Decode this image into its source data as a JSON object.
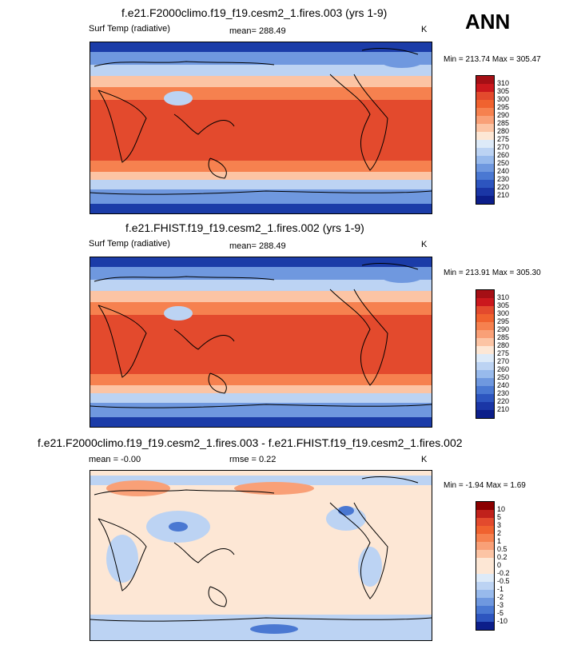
{
  "season": "ANN",
  "panels": [
    {
      "title": "f.e21.F2000climo.f19_f19.cesm2_1.fires.003 (yrs 1-9)",
      "variable": "Surf Temp (radiative)",
      "mean_text": "mean= 288.49",
      "units": "K",
      "minmax_text": "Min = 213.74 Max = 305.47",
      "colorbar_levels": [
        "310",
        "305",
        "300",
        "295",
        "290",
        "285",
        "280",
        "275",
        "270",
        "260",
        "250",
        "240",
        "230",
        "220",
        "210"
      ],
      "colorbar_colors": [
        "#a50f15",
        "#cb181d",
        "#e34a2d",
        "#f0622f",
        "#f6814f",
        "#f9a077",
        "#fcc4a4",
        "#fde7d5",
        "#ddeaf8",
        "#bcd3f3",
        "#98baec",
        "#6f98df",
        "#4a78d2",
        "#2d55bf",
        "#1a36a6",
        "#0c1e8a"
      ],
      "map_colors": {
        "polar": "#1b3ca8",
        "subpolar": "#6f98df",
        "midlat": "#bcd3f3",
        "temperate": "#fcc4a4",
        "warm": "#f6814f",
        "tropics": "#e34a2d",
        "land": "#000000"
      }
    },
    {
      "title": "f.e21.FHIST.f19_f19.cesm2_1.fires.002 (yrs 1-9)",
      "variable": "Surf Temp (radiative)",
      "mean_text": "mean= 288.49",
      "units": "K",
      "minmax_text": "Min = 213.91 Max = 305.30",
      "colorbar_levels": [
        "310",
        "305",
        "300",
        "295",
        "290",
        "285",
        "280",
        "275",
        "270",
        "260",
        "250",
        "240",
        "230",
        "220",
        "210"
      ],
      "colorbar_colors": [
        "#a50f15",
        "#cb181d",
        "#e34a2d",
        "#f0622f",
        "#f6814f",
        "#f9a077",
        "#fcc4a4",
        "#fde7d5",
        "#ddeaf8",
        "#bcd3f3",
        "#98baec",
        "#6f98df",
        "#4a78d2",
        "#2d55bf",
        "#1a36a6",
        "#0c1e8a"
      ],
      "map_colors": {
        "polar": "#1b3ca8",
        "subpolar": "#6f98df",
        "midlat": "#bcd3f3",
        "temperate": "#fcc4a4",
        "warm": "#f6814f",
        "tropics": "#e34a2d",
        "land": "#000000"
      }
    },
    {
      "title": "f.e21.F2000climo.f19_f19.cesm2_1.fires.003 - f.e21.FHIST.f19_f19.cesm2_1.fires.002",
      "mean_text": "mean =  -0.00",
      "rmse_text": "rmse =   0.22",
      "units": "K",
      "minmax_text": "Min =  -1.94 Max =   1.69",
      "colorbar_levels": [
        "10",
        "5",
        "3",
        "2",
        "1",
        "0.5",
        "0.2",
        "0",
        "-0.2",
        "-0.5",
        "-1",
        "-2",
        "-3",
        "-5",
        "-10"
      ],
      "colorbar_colors": [
        "#8b0000",
        "#c0211b",
        "#e34a2d",
        "#f0622f",
        "#f6814f",
        "#f9a077",
        "#fcc4a4",
        "#fde7d5",
        "#fde7d5",
        "#ddeaf8",
        "#bcd3f3",
        "#98baec",
        "#6f98df",
        "#4a78d2",
        "#2d55bf",
        "#0c1e8a"
      ],
      "map_colors": {
        "background": "#fde7d5",
        "warm_patch": "#f9a077",
        "cool_patch": "#bcd3f3",
        "strong_cool": "#4a78d2",
        "land": "#000000"
      }
    }
  ]
}
